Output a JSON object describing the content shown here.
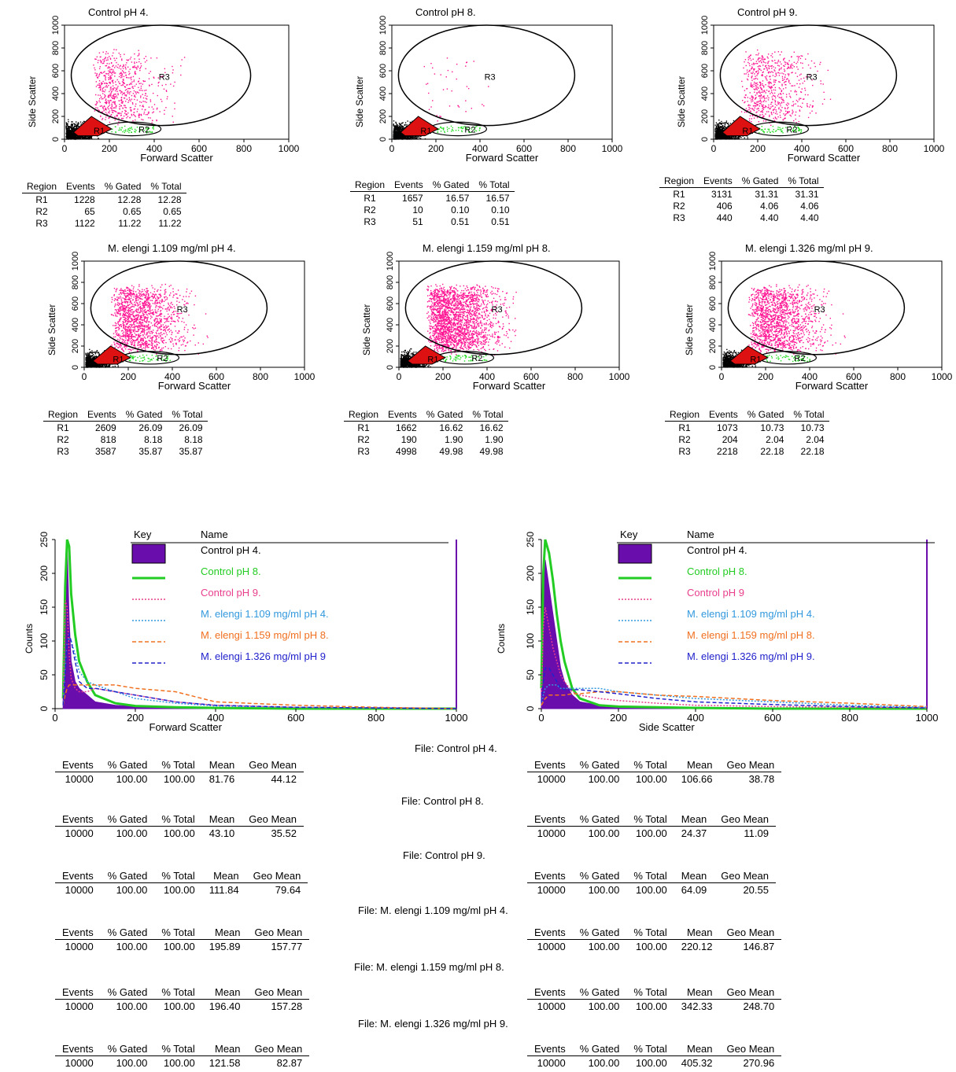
{
  "chart_data": [
    {
      "type": "scatter",
      "title": "Control pH 4.",
      "xlabel": "Forward Scatter",
      "ylabel": "Side Scatter",
      "xlim": [
        0,
        1000
      ],
      "ylim": [
        0,
        1000
      ],
      "x_ticks": [
        "0",
        "200",
        "400",
        "600",
        "800",
        "1000"
      ],
      "y_ticks": [
        "0",
        "200",
        "400",
        "600",
        "800",
        "1000"
      ],
      "regions": [
        "R1",
        "R2",
        "R3"
      ],
      "density": "medium",
      "table": {
        "headers": [
          "Region",
          "Events",
          "% Gated",
          "% Total"
        ],
        "rows": [
          [
            "R1",
            "1228",
            "12.28",
            "12.28"
          ],
          [
            "R2",
            "65",
            "0.65",
            "0.65"
          ],
          [
            "R3",
            "1122",
            "11.22",
            "11.22"
          ]
        ]
      }
    },
    {
      "type": "scatter",
      "title": "Control pH 8.",
      "xlabel": "Forward Scatter",
      "ylabel": "Side Scatter",
      "xlim": [
        0,
        1000
      ],
      "ylim": [
        0,
        1000
      ],
      "x_ticks": [
        "0",
        "200",
        "400",
        "600",
        "800",
        "1000"
      ],
      "y_ticks": [
        "0",
        "200",
        "400",
        "600",
        "800",
        "1000"
      ],
      "regions": [
        "R1",
        "R2",
        "R3"
      ],
      "density": "sparse",
      "table": {
        "headers": [
          "Region",
          "Events",
          "% Gated",
          "% Total"
        ],
        "rows": [
          [
            "R1",
            "1657",
            "16.57",
            "16.57"
          ],
          [
            "R2",
            "10",
            "0.10",
            "0.10"
          ],
          [
            "R3",
            "51",
            "0.51",
            "0.51"
          ]
        ]
      }
    },
    {
      "type": "scatter",
      "title": "Control pH 9.",
      "xlabel": "Forward Scatter",
      "ylabel": "Side Scatter",
      "xlim": [
        0,
        1000
      ],
      "ylim": [
        0,
        1000
      ],
      "x_ticks": [
        "0",
        "200",
        "400",
        "600",
        "800",
        "1000"
      ],
      "y_ticks": [
        "0",
        "200",
        "400",
        "600",
        "800",
        "1000"
      ],
      "regions": [
        "R1",
        "R2",
        "R3"
      ],
      "density": "medium",
      "table": {
        "headers": [
          "Region",
          "Events",
          "% Gated",
          "% Total"
        ],
        "rows": [
          [
            "R1",
            "3131",
            "31.31",
            "31.31"
          ],
          [
            "R2",
            "406",
            "4.06",
            "4.06"
          ],
          [
            "R3",
            "440",
            "4.40",
            "4.40"
          ]
        ]
      }
    },
    {
      "type": "scatter",
      "title": "M. elengi 1.109 mg/ml pH 4.",
      "xlabel": "Forward Scatter",
      "ylabel": "Side Scatter",
      "xlim": [
        0,
        1000
      ],
      "ylim": [
        0,
        1000
      ],
      "x_ticks": [
        "0",
        "200",
        "400",
        "600",
        "800",
        "1000"
      ],
      "y_ticks": [
        "0",
        "200",
        "400",
        "600",
        "800",
        "1000"
      ],
      "regions": [
        "R1",
        "R2",
        "R3"
      ],
      "density": "dense",
      "table": {
        "headers": [
          "Region",
          "Events",
          "% Gated",
          "% Total"
        ],
        "rows": [
          [
            "R1",
            "2609",
            "26.09",
            "26.09"
          ],
          [
            "R2",
            "818",
            "8.18",
            "8.18"
          ],
          [
            "R3",
            "3587",
            "35.87",
            "35.87"
          ]
        ]
      }
    },
    {
      "type": "scatter",
      "title": "M. elengi 1.159 mg/ml pH 8.",
      "xlabel": "Forward Scatter",
      "ylabel": "Side Scatter",
      "xlim": [
        0,
        1000
      ],
      "ylim": [
        0,
        1000
      ],
      "x_ticks": [
        "0",
        "200",
        "400",
        "600",
        "800",
        "1000"
      ],
      "y_ticks": [
        "0",
        "200",
        "400",
        "600",
        "800",
        "1000"
      ],
      "regions": [
        "R1",
        "R2",
        "R3"
      ],
      "density": "very-dense",
      "table": {
        "headers": [
          "Region",
          "Events",
          "% Gated",
          "% Total"
        ],
        "rows": [
          [
            "R1",
            "1662",
            "16.62",
            "16.62"
          ],
          [
            "R2",
            "190",
            "1.90",
            "1.90"
          ],
          [
            "R3",
            "4998",
            "49.98",
            "49.98"
          ]
        ]
      }
    },
    {
      "type": "scatter",
      "title": "M. elengi  1.326 mg/ml pH 9.",
      "xlabel": "Forward Scatter",
      "ylabel": "Side Scatter",
      "xlim": [
        0,
        1000
      ],
      "ylim": [
        0,
        1000
      ],
      "x_ticks": [
        "0",
        "200",
        "400",
        "600",
        "800",
        "1000"
      ],
      "y_ticks": [
        "0",
        "200",
        "400",
        "600",
        "800",
        "1000"
      ],
      "regions": [
        "R1",
        "R2",
        "R3"
      ],
      "density": "dense",
      "table": {
        "headers": [
          "Region",
          "Events",
          "% Gated",
          "% Total"
        ],
        "rows": [
          [
            "R1",
            "1073",
            "10.73",
            "10.73"
          ],
          [
            "R2",
            "204",
            "2.04",
            "2.04"
          ],
          [
            "R3",
            "2218",
            "22.18",
            "22.18"
          ]
        ]
      }
    },
    {
      "type": "line",
      "xlabel": "Forward Scatter",
      "ylabel": "Counts",
      "xlim": [
        0,
        1000
      ],
      "ylim": [
        0,
        250
      ],
      "x_ticks": [
        "0",
        "200",
        "400",
        "600",
        "800",
        "1000"
      ],
      "y_ticks": [
        "0",
        "50",
        "100",
        "150",
        "200",
        "250"
      ],
      "key_headers": [
        "Key",
        "Name"
      ],
      "series": [
        {
          "name": "Control pH 4.",
          "color": "#6a0dad",
          "style": "filled",
          "x": [
            20,
            25,
            30,
            35,
            40,
            50,
            60,
            80,
            100,
            150,
            200,
            300,
            400,
            600,
            800,
            1000
          ],
          "values": [
            10,
            160,
            245,
            130,
            70,
            40,
            30,
            20,
            10,
            5,
            3,
            2,
            1,
            1,
            0,
            0
          ]
        },
        {
          "name": "Control pH 8.",
          "color": "#22cc22",
          "style": "solid",
          "x": [
            20,
            25,
            30,
            35,
            40,
            50,
            60,
            80,
            100,
            150,
            200,
            300,
            400,
            600,
            800,
            1000
          ],
          "values": [
            15,
            180,
            250,
            240,
            170,
            110,
            70,
            40,
            20,
            8,
            4,
            2,
            1,
            0,
            0,
            0
          ]
        },
        {
          "name": "Control pH 9.",
          "color": "#e83e8c",
          "style": "dotted",
          "x": [
            20,
            25,
            30,
            35,
            40,
            50,
            60,
            80,
            100,
            150,
            200,
            300,
            400,
            600,
            800,
            1000
          ],
          "values": [
            10,
            160,
            150,
            80,
            45,
            30,
            25,
            25,
            30,
            25,
            20,
            10,
            5,
            2,
            1,
            0
          ]
        },
        {
          "name": "M. elengi 1.109 mg/ml pH 4.",
          "color": "#3399dd",
          "style": "dotted",
          "x": [
            20,
            25,
            30,
            35,
            40,
            50,
            60,
            80,
            100,
            150,
            200,
            300,
            400,
            600,
            800,
            1000
          ],
          "values": [
            5,
            60,
            100,
            105,
            100,
            80,
            55,
            40,
            35,
            25,
            15,
            8,
            4,
            2,
            1,
            0
          ]
        },
        {
          "name": "M. elengi 1.159 mg/ml pH 8.",
          "color": "#f07020",
          "style": "dashed",
          "x": [
            20,
            25,
            30,
            35,
            40,
            50,
            60,
            80,
            100,
            150,
            200,
            300,
            400,
            600,
            800,
            1000
          ],
          "values": [
            5,
            20,
            30,
            35,
            35,
            35,
            35,
            35,
            35,
            35,
            30,
            25,
            10,
            5,
            2,
            0
          ]
        },
        {
          "name": "M. elengi  1.326 mg/ml pH 9",
          "color": "#2222cc",
          "style": "dashed",
          "x": [
            20,
            25,
            30,
            35,
            40,
            50,
            60,
            80,
            100,
            150,
            200,
            300,
            400,
            600,
            800,
            1000
          ],
          "values": [
            5,
            50,
            100,
            110,
            100,
            70,
            40,
            30,
            30,
            25,
            20,
            10,
            5,
            2,
            1,
            0
          ]
        }
      ]
    },
    {
      "type": "line",
      "xlabel": "Side Scatter",
      "ylabel": "Counts",
      "xlim": [
        0,
        1000
      ],
      "ylim": [
        0,
        250
      ],
      "x_ticks": [
        "0",
        "200",
        "400",
        "600",
        "800",
        "1000"
      ],
      "y_ticks": [
        "0",
        "50",
        "100",
        "150",
        "200",
        "250"
      ],
      "key_headers": [
        "Key",
        "Name"
      ],
      "series": [
        {
          "name": "Control pH 4.",
          "color": "#6a0dad",
          "style": "filled",
          "x": [
            0,
            5,
            10,
            20,
            30,
            40,
            50,
            60,
            80,
            100,
            150,
            200,
            300,
            400,
            600,
            800,
            1000
          ],
          "values": [
            60,
            200,
            220,
            180,
            140,
            100,
            60,
            40,
            20,
            10,
            5,
            3,
            2,
            2,
            1,
            1,
            0
          ]
        },
        {
          "name": "Control pH 8.",
          "color": "#22cc22",
          "style": "solid",
          "x": [
            0,
            5,
            10,
            20,
            30,
            40,
            50,
            60,
            80,
            100,
            150,
            200,
            300,
            400,
            600,
            800,
            1000
          ],
          "values": [
            30,
            200,
            250,
            230,
            190,
            140,
            100,
            70,
            30,
            15,
            5,
            3,
            2,
            1,
            0,
            0,
            0
          ]
        },
        {
          "name": "Control pH 9",
          "color": "#e83e8c",
          "style": "dotted",
          "x": [
            0,
            5,
            10,
            20,
            30,
            40,
            50,
            60,
            80,
            100,
            150,
            200,
            300,
            400,
            600,
            800,
            1000
          ],
          "values": [
            20,
            120,
            150,
            120,
            90,
            70,
            50,
            40,
            25,
            20,
            15,
            12,
            8,
            5,
            3,
            2,
            1
          ]
        },
        {
          "name": "M. elengi 1.109 mg/ml pH 4.",
          "color": "#3399dd",
          "style": "dotted",
          "x": [
            0,
            5,
            10,
            20,
            30,
            40,
            50,
            60,
            80,
            100,
            150,
            200,
            300,
            400,
            600,
            800,
            1000
          ],
          "values": [
            5,
            20,
            30,
            35,
            35,
            35,
            30,
            30,
            30,
            30,
            30,
            25,
            20,
            15,
            10,
            5,
            2
          ]
        },
        {
          "name": "M. elengi 1.159 mg/ml pH 8.",
          "color": "#f07020",
          "style": "dashed",
          "x": [
            0,
            5,
            10,
            20,
            30,
            40,
            50,
            60,
            80,
            100,
            150,
            200,
            300,
            400,
            600,
            800,
            1000
          ],
          "values": [
            5,
            10,
            15,
            20,
            20,
            20,
            20,
            20,
            22,
            22,
            25,
            25,
            20,
            18,
            12,
            8,
            3
          ]
        },
        {
          "name": "M. elengi  1.326 mg/ml pH 9.",
          "color": "#2222cc",
          "style": "dashed",
          "x": [
            0,
            5,
            10,
            20,
            30,
            40,
            50,
            60,
            80,
            100,
            150,
            200,
            300,
            400,
            600,
            800,
            1000
          ],
          "values": [
            10,
            40,
            60,
            60,
            50,
            40,
            30,
            28,
            28,
            28,
            25,
            22,
            15,
            10,
            6,
            3,
            1
          ]
        }
      ]
    }
  ],
  "stats": {
    "headers": [
      "Events",
      "% Gated",
      "% Total",
      "Mean",
      "Geo Mean"
    ],
    "files": [
      {
        "label": "File: Control pH 4.",
        "fs": [
          "10000",
          "100.00",
          "100.00",
          "81.76",
          "44.12"
        ],
        "ss": [
          "10000",
          "100.00",
          "100.00",
          "106.66",
          "38.78"
        ]
      },
      {
        "label": "File: Control pH 8.",
        "fs": [
          "10000",
          "100.00",
          "100.00",
          "43.10",
          "35.52"
        ],
        "ss": [
          "10000",
          "100.00",
          "100.00",
          "24.37",
          "11.09"
        ]
      },
      {
        "label": "File: Control pH 9.",
        "fs": [
          "10000",
          "100.00",
          "100.00",
          "111.84",
          "79.64"
        ],
        "ss": [
          "10000",
          "100.00",
          "100.00",
          "64.09",
          "20.55"
        ]
      },
      {
        "label": "File: M. elengi 1.109 mg/ml pH 4.",
        "fs": [
          "10000",
          "100.00",
          "100.00",
          "195.89",
          "157.77"
        ],
        "ss": [
          "10000",
          "100.00",
          "100.00",
          "220.12",
          "146.87"
        ]
      },
      {
        "label": "File: M. elengi 1.159 mg/ml pH 8.",
        "fs": [
          "10000",
          "100.00",
          "100.00",
          "196.40",
          "157.28"
        ],
        "ss": [
          "10000",
          "100.00",
          "100.00",
          "342.33",
          "248.70"
        ]
      },
      {
        "label": "File: M. elengi  1.326 mg/ml pH 9.",
        "fs": [
          "10000",
          "100.00",
          "100.00",
          "121.58",
          "82.87"
        ],
        "ss": [
          "10000",
          "100.00",
          "100.00",
          "405.32",
          "270.96"
        ]
      }
    ]
  }
}
